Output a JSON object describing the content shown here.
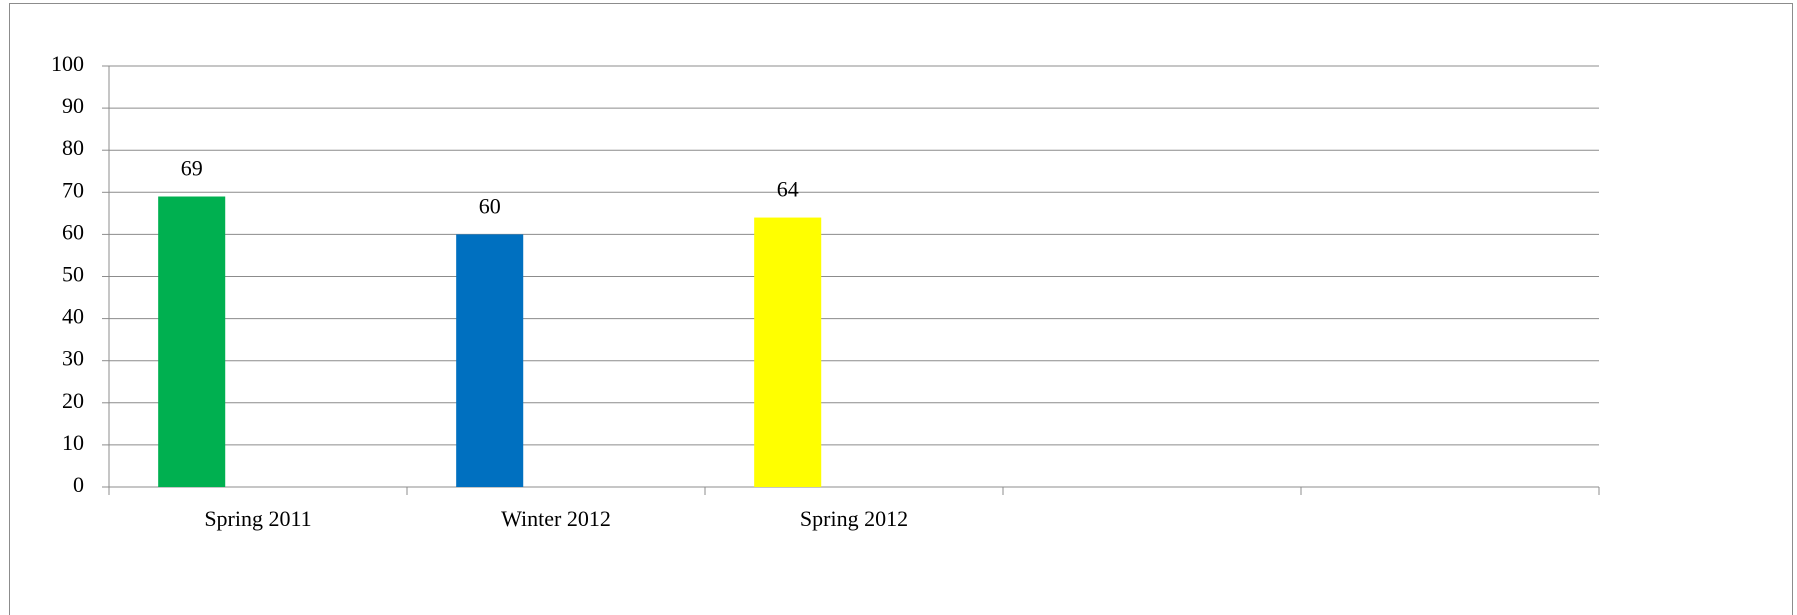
{
  "chart_data": {
    "type": "bar",
    "categories": [
      "Spring 2011",
      "Winter 2012",
      "Spring 2012",
      null,
      null
    ],
    "values": [
      69,
      60,
      64,
      null,
      null
    ],
    "colors": [
      "#00b050",
      "#0070c0",
      "#ffff00",
      null,
      null
    ],
    "ylim": [
      0,
      100
    ],
    "yticks": [
      0,
      10,
      20,
      30,
      40,
      50,
      60,
      70,
      80,
      90,
      100
    ],
    "grid": true,
    "data_labels": true
  }
}
